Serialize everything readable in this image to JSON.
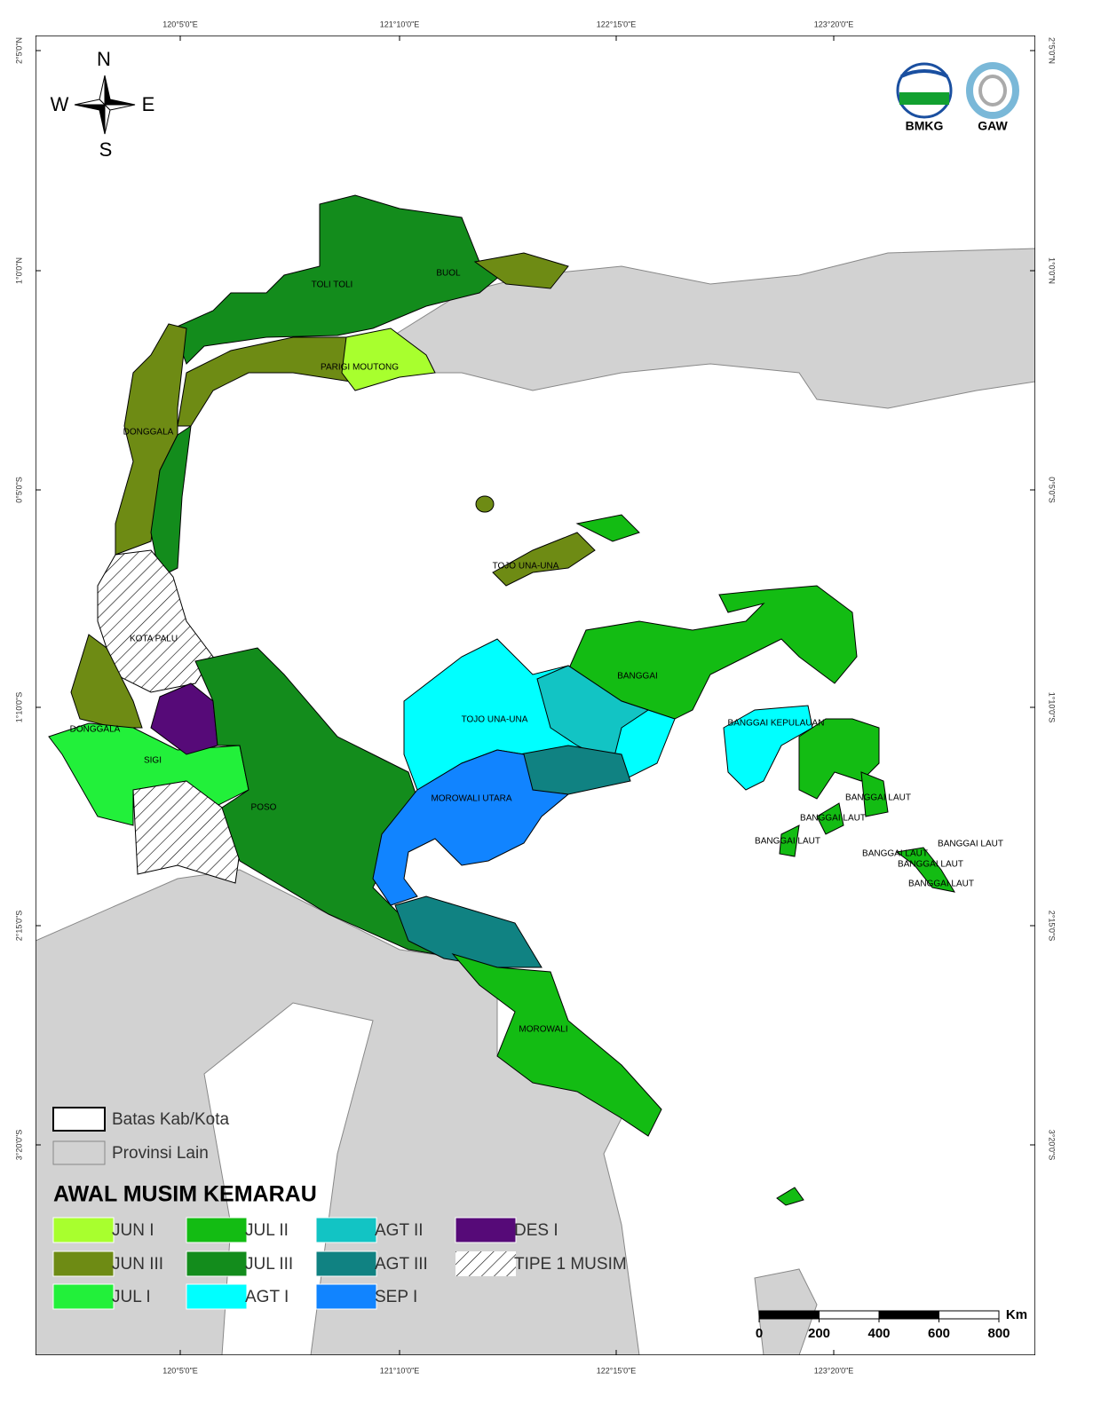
{
  "map": {
    "compass": {
      "n": "N",
      "s": "S",
      "w": "W",
      "e": "E"
    },
    "logos": [
      "BMKG",
      "GAW"
    ],
    "lon_labels": [
      "120°5'0\"E",
      "121°10'0\"E",
      "122°15'0\"E",
      "123°20'0\"E"
    ],
    "lat_labels": [
      "2°5'0\"N",
      "1°0'0\"N",
      "0°5'0\"S",
      "1°10'0\"S",
      "2°15'0\"S",
      "3°20'0\"S"
    ],
    "region_labels": [
      "TOLI TOLI",
      "BUOL",
      "PARIGI MOUTONG",
      "DONGGALA",
      "TOJO UNA-UNA",
      "KOTA PALU",
      "DONGGALA",
      "SIGI",
      "POSO",
      "TOJO UNA-UNA",
      "BANGGAI",
      "BANGGAI KEPULAUAN",
      "MOROWALI UTARA",
      "BANGGAI LAUT",
      "BANGGAI LAUT",
      "BANGGAI LAUT",
      "BANGGAI LAUT",
      "BANGGAI LAUT",
      "BANGGAI LAUT",
      "BANGGAI LAUT",
      "MOROWALI"
    ],
    "boundary_legend": [
      "Batas Kab/Kota",
      "Provinsi Lain"
    ],
    "legend": {
      "title": "AWAL MUSIM KEMARAU",
      "items": [
        {
          "label": "JUN I",
          "color": "#a8ff2e"
        },
        {
          "label": "JUN III",
          "color": "#6e8b14"
        },
        {
          "label": "JUL I",
          "color": "#22f03a"
        },
        {
          "label": "JUL II",
          "color": "#13bc13"
        },
        {
          "label": "JUL III",
          "color": "#138c1c"
        },
        {
          "label": "AGT I",
          "color": "#00ffff"
        },
        {
          "label": "AGT II",
          "color": "#12c4c4"
        },
        {
          "label": "AGT III",
          "color": "#108282"
        },
        {
          "label": "SEP I",
          "color": "#1184ff"
        },
        {
          "label": "DES I",
          "color": "#560a78"
        },
        {
          "label": "TIPE 1 MUSIM",
          "color": "hatch"
        }
      ]
    },
    "scale": {
      "unit": "Km",
      "ticks": [
        0,
        200,
        400,
        600,
        800
      ]
    }
  }
}
